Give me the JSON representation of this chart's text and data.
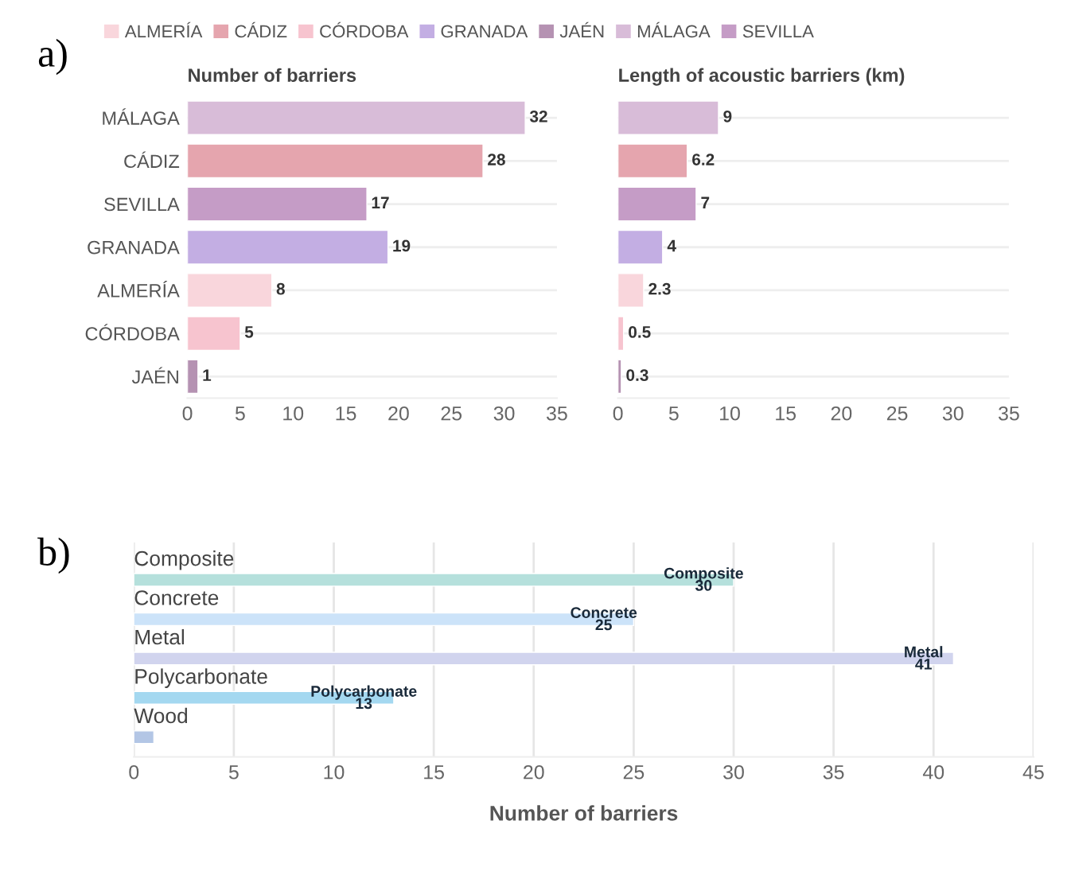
{
  "chart_data": [
    {
      "type": "bar",
      "orientation": "horizontal",
      "title": "Number of barriers",
      "annotations": [
        "a)"
      ],
      "categories": [
        "MÁLAGA",
        "CÁDIZ",
        "SEVILLA",
        "GRANADA",
        "ALMERÍA",
        "CÓRDOBA",
        "JAÉN"
      ],
      "series": [
        {
          "name": "ALMERÍA",
          "color": "#f9d6dc",
          "values": [
            null,
            null,
            null,
            null,
            8,
            null,
            null
          ]
        },
        {
          "name": "CÁDIZ",
          "color": "#e5a5ae",
          "values": [
            null,
            28,
            null,
            null,
            null,
            null,
            null
          ]
        },
        {
          "name": "CÓRDOBA",
          "color": "#f7c4cf",
          "values": [
            null,
            null,
            null,
            null,
            null,
            5,
            null
          ]
        },
        {
          "name": "GRANADA",
          "color": "#c3aee3",
          "values": [
            null,
            null,
            null,
            19,
            null,
            null,
            null
          ]
        },
        {
          "name": "JAÉN",
          "color": "#b592b2",
          "values": [
            null,
            null,
            null,
            null,
            null,
            null,
            1
          ]
        },
        {
          "name": "MÁLAGA",
          "color": "#d8bcd8",
          "values": [
            32,
            null,
            null,
            null,
            null,
            null,
            null
          ]
        },
        {
          "name": "SEVILLA",
          "color": "#c59cc6",
          "values": [
            null,
            null,
            17,
            null,
            null,
            null,
            null
          ]
        }
      ],
      "xlim": [
        0,
        35
      ],
      "xticks": [
        0,
        5,
        10,
        15,
        20,
        25,
        30,
        35
      ],
      "grid": "y",
      "data_labels": true,
      "legend": "top"
    },
    {
      "type": "bar",
      "orientation": "horizontal",
      "title": "Length of acoustic barriers (km)",
      "categories": [
        null,
        null,
        null,
        null,
        null,
        null,
        null
      ],
      "values": [
        9,
        6.2,
        7,
        4,
        2.3,
        0.5,
        0.3
      ],
      "colors": [
        "#d8bcd8",
        "#e5a5ae",
        "#c59cc6",
        "#c3aee3",
        "#f9d6dc",
        "#f7c4cf",
        "#b592b2"
      ],
      "xlim": [
        0,
        35
      ],
      "xticks": [
        0,
        5,
        10,
        15,
        20,
        25,
        30,
        35
      ],
      "grid": "y",
      "data_labels": true
    },
    {
      "type": "bar",
      "orientation": "horizontal",
      "xlabel": "Number of barriers",
      "annotations": [
        "b)"
      ],
      "categories": [
        "Composite",
        "Concrete",
        "Metal",
        "Polycarbonate",
        "Wood"
      ],
      "values": [
        30,
        25,
        41,
        13,
        1
      ],
      "value_labels": [
        "Composite\n30",
        "Concrete\n25",
        "Metal\n41",
        "Polycarbonate\n13",
        null
      ],
      "colors": [
        "#b5e0dc",
        "#cce3f9",
        "#d1d4ee",
        "#a4d8f0",
        "#b3c6e5"
      ],
      "xlim": [
        0,
        45
      ],
      "xticks": [
        0,
        5,
        10,
        15,
        20,
        25,
        30,
        35,
        40,
        45
      ],
      "grid": "x"
    }
  ]
}
